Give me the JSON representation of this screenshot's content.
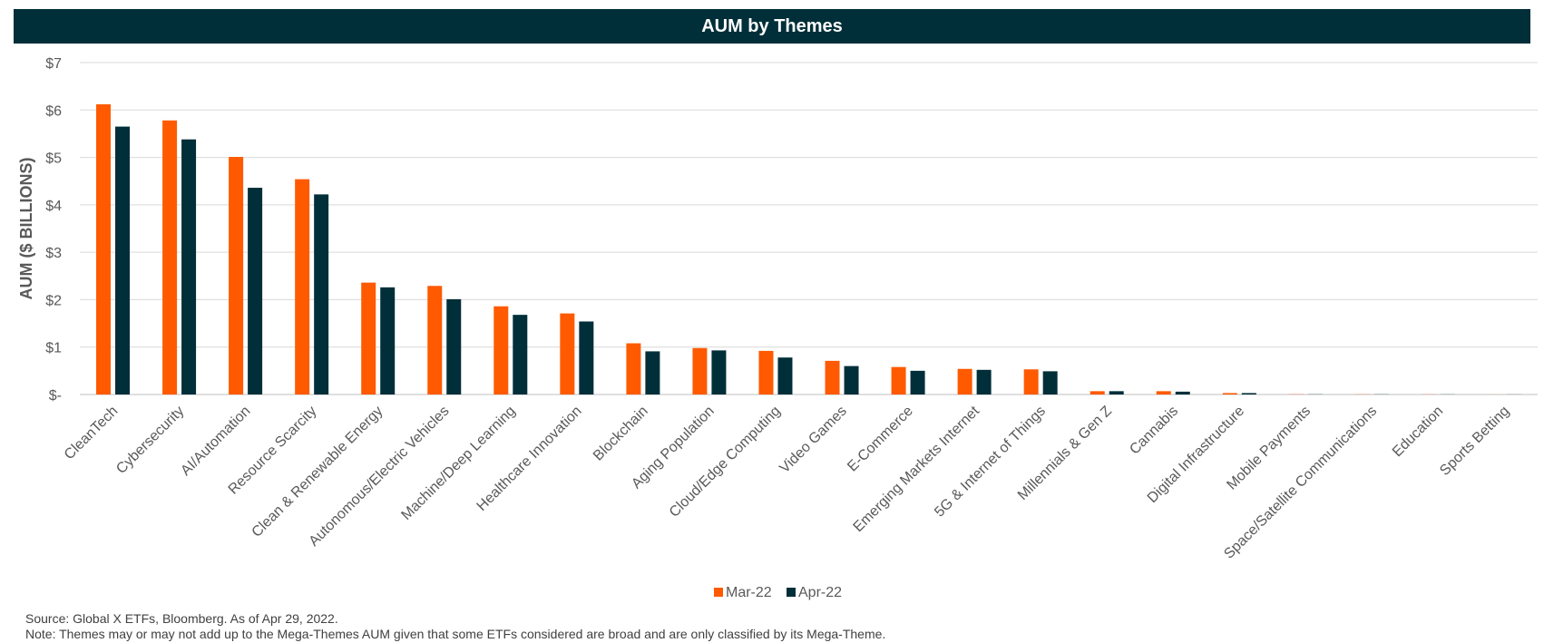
{
  "chart_data": {
    "type": "bar",
    "title": "AUM by Themes",
    "ylabel": "AUM ($ BILLIONS)",
    "xlabel": "",
    "ylim": [
      0,
      7
    ],
    "y_ticks": [
      "$-",
      "$1",
      "$2",
      "$3",
      "$4",
      "$5",
      "$6",
      "$7"
    ],
    "grid": true,
    "legend_position": "bottom-center",
    "categories": [
      "CleanTech",
      "Cybersecurity",
      "AI/Automation",
      "Resource Scarcity",
      "Clean & Renewable Energy",
      "Autonomous/Electric Vehicles",
      "Machine/Deep Learning",
      "Healthcare Innovation",
      "Blockchain",
      "Aging Population",
      "Cloud/Edge Computing",
      "Video Games",
      "E-Commerce",
      "Emerging Markets Internet",
      "5G & Internet of Things",
      "Millennials & Gen Z",
      "Cannabis",
      "Digital Infrastructure",
      "Mobile Payments",
      "Space/Satellite Communications",
      "Education",
      "Sports Betting"
    ],
    "series": [
      {
        "name": "Mar-22",
        "color": "#ff5a00",
        "values": [
          6.12,
          5.78,
          5.01,
          4.54,
          2.36,
          2.29,
          1.86,
          1.71,
          1.08,
          0.98,
          0.92,
          0.71,
          0.58,
          0.54,
          0.53,
          0.07,
          0.07,
          0.03,
          0.005,
          0.004,
          0.003,
          0.001
        ]
      },
      {
        "name": "Apr-22",
        "color": "#002f39",
        "values": [
          5.65,
          5.38,
          4.36,
          4.22,
          2.26,
          2.01,
          1.68,
          1.54,
          0.91,
          0.93,
          0.78,
          0.6,
          0.5,
          0.52,
          0.49,
          0.07,
          0.06,
          0.03,
          0.004,
          0.004,
          0.003,
          0.002
        ]
      }
    ]
  },
  "notes": {
    "source": "Source: Global X ETFs, Bloomberg. As of Apr 29, 2022.",
    "note": "Note: Themes may or may not add up to the Mega-Themes AUM given that some ETFs considered are broad and are only classified by its Mega-Theme."
  }
}
